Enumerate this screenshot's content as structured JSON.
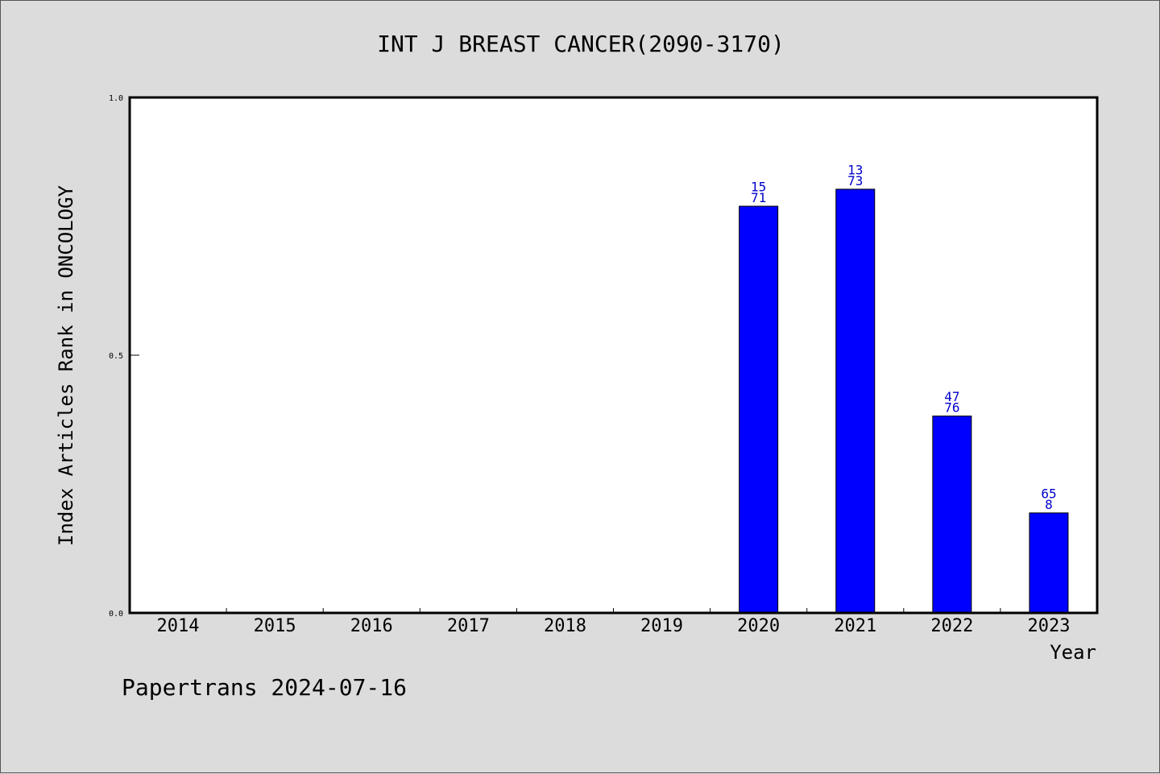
{
  "chart_data": {
    "type": "bar",
    "title": "INT J BREAST CANCER(2090-3170)",
    "ylabel": "Index Articles Rank in ONCOLOGY",
    "xlabel": "Year",
    "categories": [
      "2014",
      "2015",
      "2016",
      "2017",
      "2018",
      "2019",
      "2020",
      "2021",
      "2022",
      "2023"
    ],
    "values": [
      null,
      null,
      null,
      null,
      null,
      null,
      0.789,
      0.822,
      0.382,
      0.194
    ],
    "labels": [
      null,
      null,
      null,
      null,
      null,
      null,
      [
        "15",
        "71"
      ],
      [
        "13",
        "73"
      ],
      [
        "47",
        "76"
      ],
      [
        "65",
        "8"
      ]
    ],
    "ylim": [
      0,
      1
    ],
    "yticks": [
      "0.0",
      "0.5",
      "1.0"
    ],
    "grid": false,
    "bar_color": "#0000ff",
    "label_color": "#0000cc"
  },
  "footer": "Papertrans 2024-07-16"
}
